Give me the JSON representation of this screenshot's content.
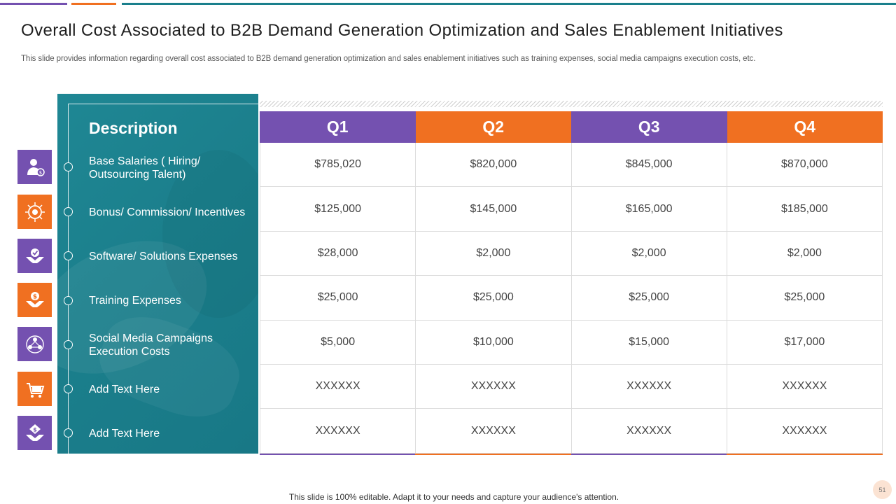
{
  "title": "Overall Cost Associated to B2B Demand Generation Optimization and Sales Enablement Initiatives",
  "subtitle": "This slide provides information regarding overall cost associated to B2B demand generation optimization and sales enablement initiatives such as training expenses, social media campaigns execution costs, etc.",
  "table": {
    "description_header": "Description",
    "quarters": [
      "Q1",
      "Q2",
      "Q3",
      "Q4"
    ],
    "rows": [
      {
        "label_line1": "Base Salaries ( Hiring/",
        "label_line2": "Outsourcing Talent)",
        "icon": "salary-person-icon",
        "values": [
          "$785,020",
          "$820,000",
          "$845,000",
          "$870,000"
        ]
      },
      {
        "label_line1": "Bonus/ Commission/ Incentives",
        "label_line2": "",
        "icon": "bonus-target-icon",
        "values": [
          "$125,000",
          "$145,000",
          "$165,000",
          "$185,000"
        ]
      },
      {
        "label_line1": "Software/ Solutions  Expenses",
        "label_line2": "",
        "icon": "software-hands-icon",
        "values": [
          "$28,000",
          "$2,000",
          "$2,000",
          "$2,000"
        ]
      },
      {
        "label_line1": "Training Expenses",
        "label_line2": "",
        "icon": "money-hands-icon",
        "values": [
          "$25,000",
          "$25,000",
          "$25,000",
          "$25,000"
        ]
      },
      {
        "label_line1": "Social Media Campaigns",
        "label_line2": "Execution Costs",
        "icon": "social-network-icon",
        "values": [
          "$5,000",
          "$10,000",
          "$15,000",
          "$17,000"
        ]
      },
      {
        "label_line1": "Add Text Here",
        "label_line2": "",
        "icon": "shopping-basket-icon",
        "values": [
          "XXXXXX",
          "XXXXXX",
          "XXXXXX",
          "XXXXXX"
        ]
      },
      {
        "label_line1": "Add Text Here",
        "label_line2": "",
        "icon": "dollar-hand-icon",
        "values": [
          "XXXXXX",
          "XXXXXX",
          "XXXXXX",
          "XXXXXX"
        ]
      }
    ]
  },
  "footer": "This slide is 100% editable. Adapt it to your needs and capture your audience's attention.",
  "page_number": "51",
  "colors": {
    "purple": "#7451b0",
    "orange": "#f07021",
    "teal": "#1b7f8c"
  }
}
